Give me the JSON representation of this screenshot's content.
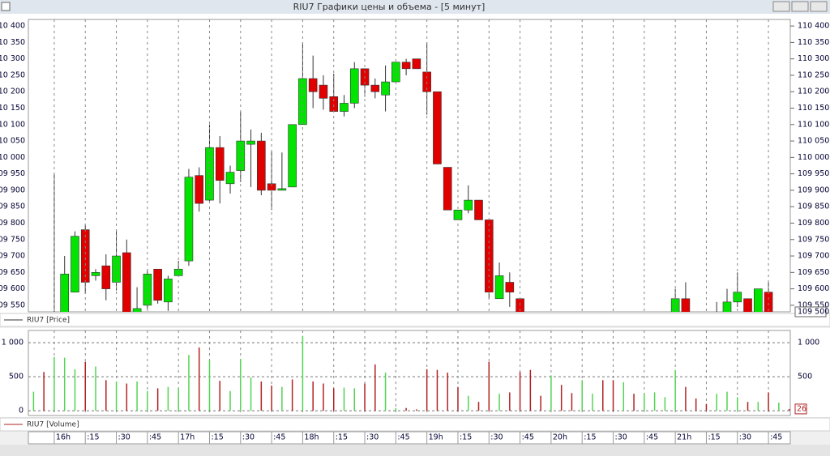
{
  "chart_data": {
    "type": "candlestick",
    "title": "RIU7 Графики цены и объема - [5 минут]",
    "price_legend": "RIU7 [Price]",
    "volume_legend": "RIU7 [Volume]",
    "categories": [
      null,
      null,
      "16h",
      null,
      null,
      ":15",
      null,
      null,
      ":30",
      null,
      null,
      ":45",
      null,
      null,
      "17h",
      null,
      null,
      ":15",
      null,
      null,
      ":30",
      null,
      null,
      ":45",
      null,
      null,
      "18h",
      null,
      null,
      ":15",
      null,
      null,
      ":30",
      null,
      null,
      ":45",
      null,
      null,
      "19h",
      null,
      null,
      ":15",
      null,
      null,
      ":30",
      null,
      null,
      ":45",
      null,
      null,
      "20h",
      null,
      null,
      ":15",
      null,
      null,
      ":30",
      null,
      null,
      ":45",
      null,
      null,
      "21h",
      null,
      null,
      ":15",
      null,
      null,
      ":30",
      null,
      null,
      ":45",
      null,
      null
    ],
    "open": [
      null,
      null,
      109500,
      109520,
      109590,
      109780,
      109640,
      109670,
      109620,
      109710,
      109520,
      109550,
      109660,
      109560,
      109640,
      109685,
      109945,
      109870,
      110030,
      109920,
      109960,
      110040,
      110050,
      109920,
      109900,
      109910,
      110100,
      110240,
      110220,
      110185,
      110140,
      110165,
      110270,
      110220,
      110190,
      110230,
      110290,
      110300,
      110260,
      110200,
      109970,
      109810,
      109840,
      109870,
      109810,
      109570,
      109620,
      109570,
      null,
      null,
      null,
      null,
      null,
      null,
      null,
      null,
      null,
      null,
      null,
      null,
      null,
      null,
      109510,
      109570,
      null,
      null,
      109510,
      109520,
      109560,
      109570,
      109520,
      109590,
      null,
      null
    ],
    "high": [
      null,
      null,
      109950,
      109700,
      109775,
      109795,
      109660,
      109705,
      109780,
      109750,
      109605,
      109660,
      109660,
      109640,
      109685,
      109965,
      109970,
      110100,
      110065,
      109975,
      110140,
      110085,
      110075,
      110020,
      110015,
      110100,
      110350,
      110310,
      110250,
      110255,
      110190,
      110290,
      110270,
      110240,
      110280,
      110290,
      110300,
      110300,
      110350,
      110200,
      109970,
      109840,
      109915,
      109870,
      109810,
      109680,
      109650,
      109570,
      null,
      null,
      null,
      null,
      null,
      null,
      null,
      null,
      null,
      null,
      null,
      null,
      null,
      null,
      109600,
      109620,
      null,
      null,
      109560,
      109600,
      109650,
      109570,
      109600,
      109620,
      null,
      null
    ],
    "low": [
      null,
      null,
      109500,
      109500,
      109590,
      109585,
      109625,
      109565,
      109595,
      109510,
      109510,
      109540,
      109555,
      109533,
      109640,
      109670,
      109835,
      109865,
      109860,
      109890,
      109925,
      109910,
      109885,
      109840,
      109900,
      109910,
      110100,
      110150,
      110145,
      110140,
      110125,
      110150,
      110185,
      110180,
      110140,
      110230,
      110250,
      110270,
      110130,
      109980,
      109840,
      109810,
      109830,
      109810,
      109570,
      109570,
      109545,
      109500,
      null,
      null,
      null,
      null,
      null,
      null,
      null,
      null,
      null,
      null,
      null,
      null,
      null,
      null,
      109500,
      109500,
      null,
      null,
      109500,
      109500,
      109545,
      109500,
      109500,
      109500,
      null,
      null
    ],
    "close": [
      null,
      null,
      109520,
      109645,
      109760,
      109620,
      109650,
      109600,
      109700,
      109520,
      109540,
      109645,
      109565,
      109630,
      109660,
      109940,
      109860,
      110030,
      109930,
      109955,
      110050,
      110050,
      109900,
      109900,
      109905,
      110100,
      110240,
      110200,
      110180,
      110140,
      110165,
      110270,
      110220,
      110200,
      110230,
      110290,
      110270,
      110270,
      110200,
      109980,
      109840,
      109840,
      109870,
      109810,
      109590,
      109640,
      109590,
      109510,
      null,
      null,
      null,
      null,
      null,
      null,
      null,
      null,
      null,
      null,
      null,
      null,
      null,
      null,
      109570,
      109510,
      null,
      null,
      109520,
      109560,
      109590,
      109520,
      109600,
      109520,
      null,
      null
    ],
    "up_color": "#00e400",
    "down_color": "#e00000",
    "ylim": [
      109530,
      110420
    ],
    "yticks": [
      {
        "value": 109550,
        "label": "109 550"
      },
      {
        "value": 109600,
        "label": "109 600"
      },
      {
        "value": 109650,
        "label": "109 650"
      },
      {
        "value": 109700,
        "label": "109 700"
      },
      {
        "value": 109750,
        "label": "109 750"
      },
      {
        "value": 109800,
        "label": "109 800"
      },
      {
        "value": 109850,
        "label": "109 850"
      },
      {
        "value": 109900,
        "label": "109 900"
      },
      {
        "value": 109950,
        "label": "109 950"
      },
      {
        "value": 110000,
        "label": "110 000"
      },
      {
        "value": 110050,
        "label": "110 050"
      },
      {
        "value": 110100,
        "label": "110 100"
      },
      {
        "value": 110150,
        "label": "110 150"
      },
      {
        "value": 110200,
        "label": "110 200"
      },
      {
        "value": 110250,
        "label": "110 250"
      },
      {
        "value": 110300,
        "label": "110 300"
      },
      {
        "value": 110350,
        "label": "110 350"
      },
      {
        "value": 110400,
        "label": "110 400"
      }
    ],
    "price_marker": {
      "value": 109500,
      "label": "109 500"
    },
    "volume": {
      "values": [
        280,
        570,
        790,
        780,
        610,
        720,
        650,
        450,
        430,
        400,
        430,
        290,
        330,
        350,
        330,
        820,
        930,
        740,
        440,
        290,
        760,
        490,
        430,
        370,
        350,
        460,
        1100,
        430,
        400,
        330,
        340,
        330,
        400,
        680,
        560,
        40,
        40,
        20,
        610,
        600,
        560,
        350,
        220,
        130,
        720,
        250,
        270,
        570,
        600,
        220,
        520,
        380,
        260,
        450,
        250,
        450,
        450,
        420,
        250,
        250,
        270,
        200,
        600,
        350,
        180,
        100,
        250,
        280,
        200,
        130,
        130,
        270,
        120,
        26
      ],
      "colors": [
        "#52d452",
        "#b22222",
        "#52d452",
        "#52d452",
        "#52d452",
        "#b22222",
        "#52d452",
        "#b22222",
        "#52d452",
        "#b22222",
        "#52d452",
        "#52d452",
        "#b22222",
        "#52d452",
        "#52d452",
        "#52d452",
        "#b22222",
        "#52d452",
        "#b22222",
        "#52d452",
        "#52d452",
        "#52d452",
        "#b22222",
        "#b22222",
        "#52d452",
        "#b22222",
        "#52d452",
        "#b22222",
        "#b22222",
        "#b22222",
        "#52d452",
        "#52d452",
        "#b22222",
        "#b22222",
        "#52d452",
        "#52d452",
        "#b22222",
        "#b22222",
        "#b22222",
        "#b22222",
        "#b22222",
        "#b22222",
        "#52d452",
        "#b22222",
        "#b22222",
        "#52d452",
        "#b22222",
        "#b22222",
        "#b22222",
        "#b22222",
        "#52d452",
        "#b22222",
        "#b22222",
        "#52d452",
        "#52d452",
        "#b22222",
        "#b22222",
        "#52d452",
        "#b22222",
        "#52d452",
        "#52d452",
        "#52d452",
        "#52d452",
        "#b22222",
        "#b22222",
        "#b22222",
        "#52d452",
        "#52d452",
        "#52d452",
        "#b22222",
        "#52d452",
        "#b22222",
        "#52d452",
        "#b22222"
      ],
      "ylim": [
        -70,
        1180
      ],
      "yticks": [
        0,
        500,
        {
          "value": 1000,
          "label": "1 000"
        }
      ]
    },
    "grid": true
  }
}
